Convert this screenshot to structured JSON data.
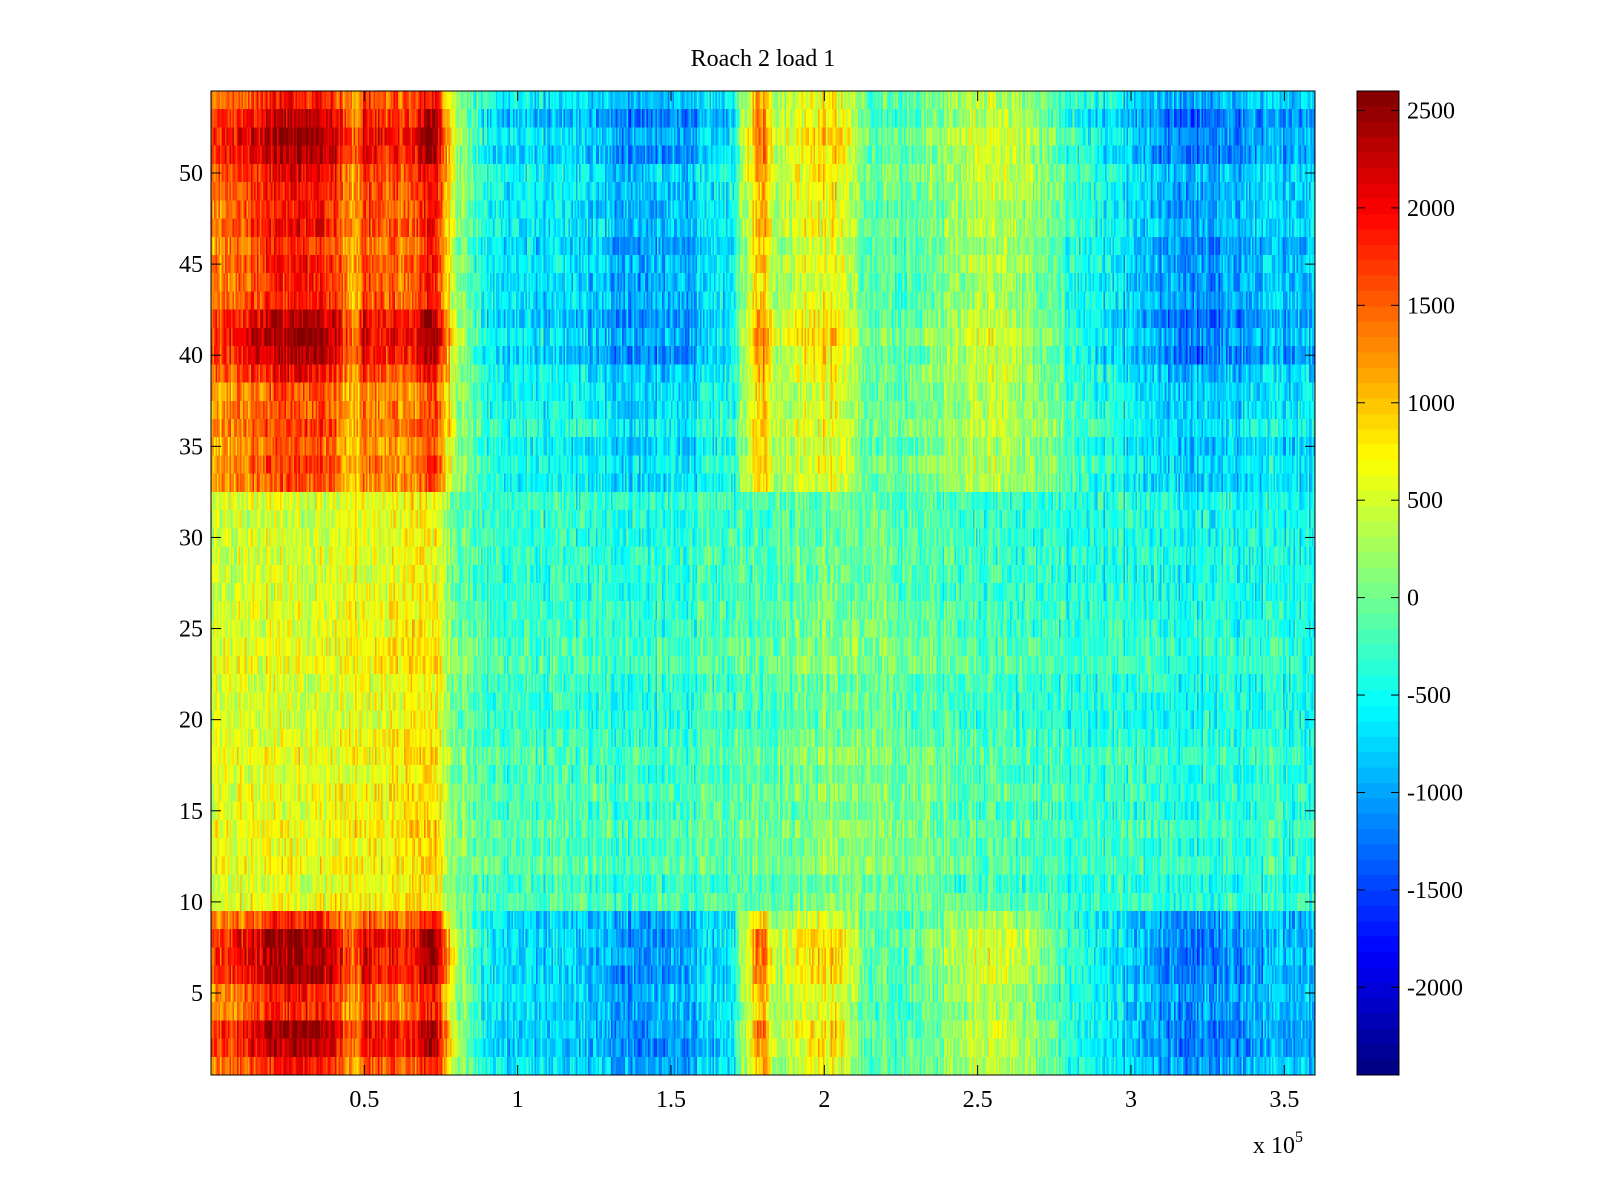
{
  "chart_data": {
    "type": "heatmap",
    "title": "Roach 2 load 1",
    "xlabel": "",
    "ylabel": "",
    "x_scale_label": "x 10",
    "x_scale_exponent": "5",
    "xlim": [
      0,
      3.6
    ],
    "ylim": [
      0.5,
      54.5
    ],
    "x_ticks": [
      0.5,
      1,
      1.5,
      2,
      2.5,
      3,
      3.5
    ],
    "x_tick_labels": [
      "0.5",
      "1",
      "1.5",
      "2",
      "2.5",
      "3",
      "3.5"
    ],
    "y_ticks": [
      5,
      10,
      15,
      20,
      25,
      30,
      35,
      40,
      45,
      50
    ],
    "y_tick_labels": [
      "5",
      "10",
      "15",
      "20",
      "25",
      "30",
      "35",
      "40",
      "45",
      "50"
    ],
    "colorbar": {
      "colormap": "jet",
      "range": [
        -2450,
        2600
      ],
      "ticks": [
        2500,
        2000,
        1500,
        1000,
        500,
        0,
        -500,
        -1000,
        -1500,
        -2000
      ],
      "tick_labels": [
        "2500",
        "2000",
        "1500",
        "1000",
        "500",
        "0",
        "-500",
        "-1000",
        "-1500",
        "-2000"
      ]
    },
    "grid": false,
    "rows": 54,
    "columns": 720,
    "bands": {
      "row_groups": [
        {
          "rows": [
            1,
            9
          ],
          "profile": "strong"
        },
        {
          "rows": [
            10,
            32
          ],
          "profile": "weak"
        },
        {
          "rows": [
            33,
            54
          ],
          "profile": "strong"
        }
      ],
      "strong_profile_x_values": [
        0,
        0.1,
        0.2,
        0.3,
        0.4,
        0.47,
        0.5,
        0.55,
        0.65,
        0.72,
        0.8,
        0.9,
        1.0,
        1.2,
        1.4,
        1.55,
        1.7,
        1.78,
        1.8,
        1.85,
        1.95,
        2.05,
        2.15,
        2.35,
        2.5,
        2.62,
        2.8,
        2.95,
        3.1,
        3.25,
        3.4,
        3.6
      ],
      "strong_profile_levels": [
        1500,
        1800,
        2200,
        2400,
        2100,
        1200,
        2000,
        1800,
        1700,
        2500,
        400,
        -600,
        -700,
        -800,
        -1100,
        -1000,
        -600,
        1200,
        1400,
        300,
        800,
        800,
        -200,
        0,
        500,
        400,
        -300,
        -700,
        -1100,
        -1200,
        -1000,
        -800
      ],
      "weak_profile_x_values": [
        0,
        0.2,
        0.4,
        0.6,
        0.72,
        0.78,
        0.9,
        1.5,
        2.0,
        2.4,
        2.8,
        3.2,
        3.6
      ],
      "weak_profile_levels": [
        500,
        600,
        600,
        700,
        900,
        200,
        -200,
        -300,
        100,
        -100,
        -300,
        -400,
        -350
      ]
    }
  }
}
